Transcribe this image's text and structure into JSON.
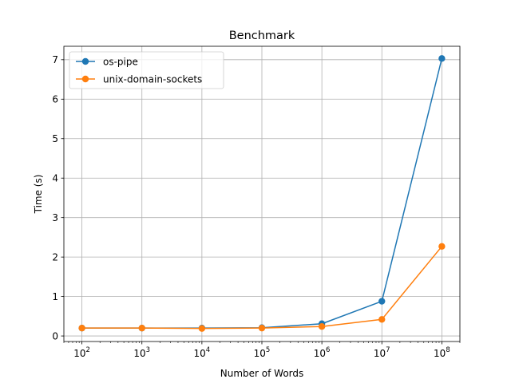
{
  "chart_data": {
    "type": "line",
    "title": "Benchmark",
    "xlabel": "Number of Words",
    "ylabel": "Time (s)",
    "xscale": "log",
    "xlim": [
      50,
      200000000
    ],
    "ylim": [
      -0.14,
      7.34
    ],
    "x": [
      100,
      1000,
      10000,
      100000,
      1000000,
      10000000,
      100000000
    ],
    "x_ticks": [
      {
        "value": 100,
        "base": "10",
        "exp": "2"
      },
      {
        "value": 1000,
        "base": "10",
        "exp": "3"
      },
      {
        "value": 10000,
        "base": "10",
        "exp": "4"
      },
      {
        "value": 100000,
        "base": "10",
        "exp": "5"
      },
      {
        "value": 1000000,
        "base": "10",
        "exp": "6"
      },
      {
        "value": 10000000,
        "base": "10",
        "exp": "7"
      },
      {
        "value": 100000000,
        "base": "10",
        "exp": "8"
      }
    ],
    "y_ticks": [
      {
        "value": 0,
        "label": "0"
      },
      {
        "value": 1,
        "label": "1"
      },
      {
        "value": 2,
        "label": "2"
      },
      {
        "value": 3,
        "label": "3"
      },
      {
        "value": 4,
        "label": "4"
      },
      {
        "value": 5,
        "label": "5"
      },
      {
        "value": 6,
        "label": "6"
      },
      {
        "value": 7,
        "label": "7"
      }
    ],
    "grid": true,
    "legend_position": "top-left",
    "series": [
      {
        "name": "os-pipe",
        "color": "#1f77b4",
        "values": [
          0.2,
          0.2,
          0.2,
          0.21,
          0.31,
          0.88,
          7.03
        ]
      },
      {
        "name": "unix-domain-sockets",
        "color": "#ff7f0e",
        "values": [
          0.2,
          0.2,
          0.19,
          0.2,
          0.24,
          0.42,
          2.27
        ]
      }
    ]
  }
}
